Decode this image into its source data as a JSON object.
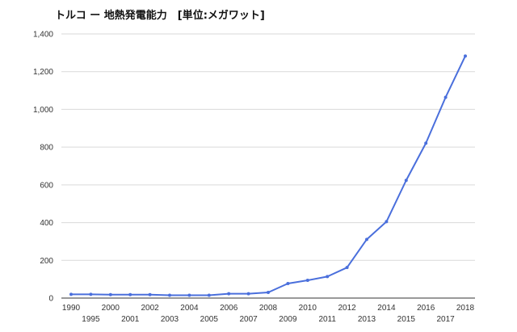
{
  "chart_data": {
    "type": "line",
    "title": "トルコ ー 地熱発電能力　[単位:メガワット]",
    "xlabel": "",
    "ylabel": "",
    "ylim": [
      0,
      1400
    ],
    "yticks": [
      "0",
      "200",
      "400",
      "600",
      "800",
      "1,000",
      "1,200",
      "1,400"
    ],
    "grid": true,
    "legend": "none",
    "color": "#4a6fdc",
    "x": [
      "1990",
      "1995",
      "2000",
      "2001",
      "2002",
      "2003",
      "2004",
      "2005",
      "2006",
      "2007",
      "2008",
      "2009",
      "2010",
      "2011",
      "2012",
      "2013",
      "2014",
      "2015",
      "2016",
      "2017",
      "2018"
    ],
    "series": [
      {
        "values": [
          20,
          20,
          18,
          18,
          18,
          15,
          15,
          15,
          23,
          23,
          30,
          77,
          94,
          114,
          162,
          311,
          405,
          624,
          821,
          1064,
          1283
        ]
      }
    ]
  }
}
